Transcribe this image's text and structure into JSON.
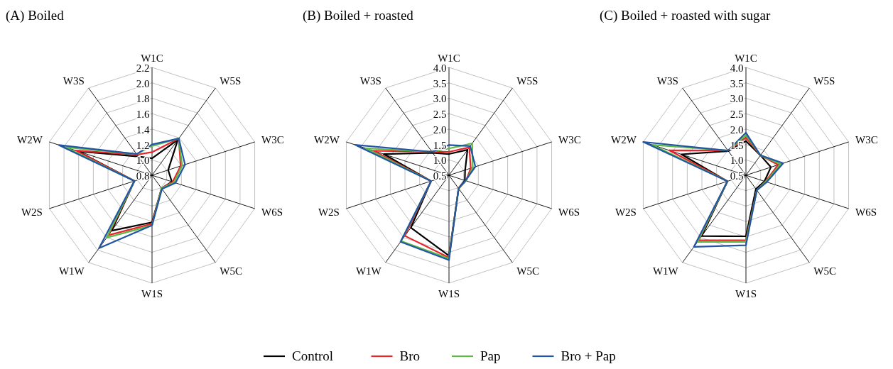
{
  "chart_data": [
    {
      "type": "radar",
      "title": "(A) Boiled",
      "categories": [
        "W1C",
        "W5S",
        "W3C",
        "W6S",
        "W5C",
        "W1S",
        "W1W",
        "W2S",
        "W2W",
        "W3S"
      ],
      "ylim": [
        0.8,
        2.2
      ],
      "yticks": [
        0.8,
        {
          "value": 1,
          "label": "1.0"
        },
        1.2,
        1.4,
        1.6,
        1.8,
        {
          "value": 2,
          "label": "2.0"
        },
        2.2
      ],
      "grid": true,
      "legend": "bottom",
      "line_style": "solid",
      "series": [
        {
          "name": "Control",
          "color": "#000000",
          "values": [
            1.02,
            1.37,
            1.02,
            1.07,
            1.01,
            1.41,
            1.69,
            1.04,
            1.81,
            1.1
          ]
        },
        {
          "name": "Bro",
          "color": "#e8232a",
          "values": [
            1.1,
            1.39,
            1.19,
            1.08,
            1.01,
            1.43,
            1.76,
            1.04,
            1.84,
            1.13
          ]
        },
        {
          "name": "Pap",
          "color": "#5db847",
          "values": [
            1.18,
            1.39,
            1.21,
            1.1,
            1.01,
            1.45,
            1.8,
            1.04,
            1.98,
            1.14
          ]
        },
        {
          "name": "Bro + Pap",
          "color": "#2155a3",
          "values": [
            1.2,
            1.39,
            1.25,
            1.12,
            1.02,
            1.45,
            1.97,
            1.04,
            2.07,
            1.14
          ]
        }
      ]
    },
    {
      "type": "radar",
      "title": "(B) Boiled + roasted",
      "categories": [
        "W1C",
        "W5S",
        "W3C",
        "W6S",
        "W5C",
        "W1S",
        "W1W",
        "W2S",
        "W2W",
        "W3S"
      ],
      "ylim": [
        0.5,
        4
      ],
      "yticks": [
        0.5,
        {
          "value": 1,
          "label": "1.0"
        },
        1.5,
        {
          "value": 2,
          "label": "2.0"
        },
        2.5,
        {
          "value": 3,
          "label": "3.0"
        },
        3.5,
        {
          "value": 4,
          "label": "4.0"
        }
      ],
      "grid": true,
      "line_style": "solid",
      "series": [
        {
          "color": "#000000",
          "values": [
            1.19,
            1.52,
            1.05,
            1.04,
            1.03,
            3.11,
            2.6,
            1.11,
            2.72,
            1.4
          ]
        },
        {
          "color": "#e8232a",
          "values": [
            1.26,
            1.62,
            1.24,
            1.08,
            1.03,
            3.17,
            2.93,
            1.11,
            3.07,
            1.44
          ]
        },
        {
          "color": "#5db847",
          "values": [
            1.37,
            1.78,
            1.31,
            1.08,
            1.03,
            3.2,
            3.14,
            1.11,
            3.33,
            1.44
          ]
        },
        {
          "color": "#2155a3",
          "values": [
            1.48,
            1.67,
            1.4,
            1.06,
            1.03,
            3.25,
            3.17,
            1.11,
            3.7,
            1.44
          ]
        }
      ]
    },
    {
      "type": "radar",
      "title": "(C) Boiled + roasted with sugar",
      "categories": [
        "W1C",
        "W5S",
        "W3C",
        "W6S",
        "W5C",
        "W1S",
        "W1W",
        "W2S",
        "W2W",
        "W3S"
      ],
      "ylim": [
        0.5,
        4
      ],
      "yticks": [
        0.5,
        {
          "value": 1,
          "label": "1.0"
        },
        1.5,
        {
          "value": 2,
          "label": "2.0"
        },
        2.5,
        {
          "value": 3,
          "label": "3.0"
        },
        3.5,
        {
          "value": 4,
          "label": "4.0"
        }
      ],
      "grid": true,
      "line_style": "solid",
      "series": [
        {
          "color": "#000000",
          "values": [
            1.61,
            1.3,
            1.35,
            1.13,
            1.05,
            2.48,
            2.94,
            1.13,
            2.7,
            1.47
          ]
        },
        {
          "color": "#e8232a",
          "values": [
            1.72,
            1.3,
            1.6,
            1.16,
            1.1,
            2.61,
            3.11,
            1.13,
            3.12,
            1.49
          ]
        },
        {
          "color": "#5db847",
          "values": [
            1.8,
            1.3,
            1.68,
            1.18,
            1.1,
            2.66,
            3.17,
            1.13,
            3.69,
            1.49
          ]
        },
        {
          "color": "#2155a3",
          "values": [
            1.88,
            1.3,
            1.77,
            1.21,
            1.1,
            2.77,
            3.37,
            1.13,
            4,
            1.49
          ]
        }
      ]
    }
  ]
}
